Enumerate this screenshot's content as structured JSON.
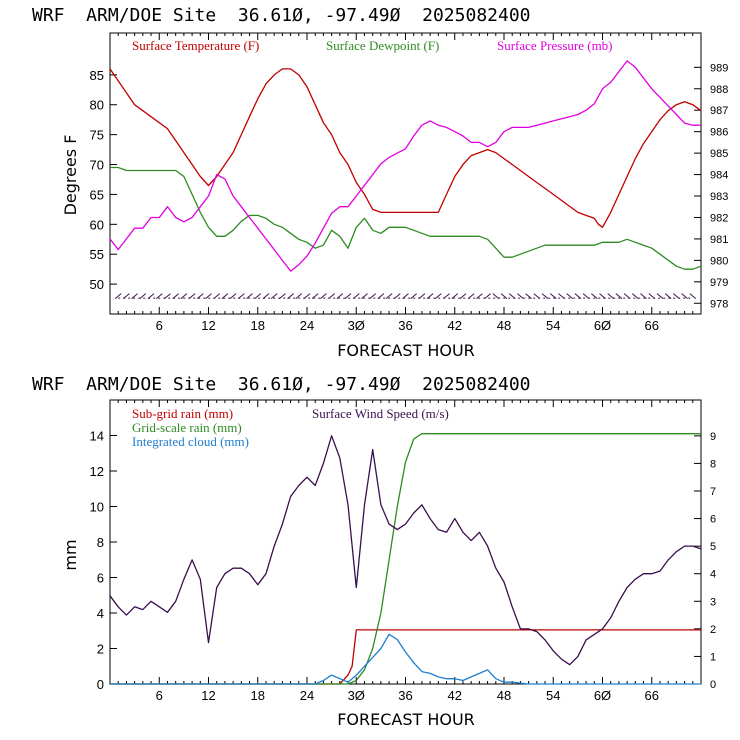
{
  "colors": {
    "temperature": "#c00000",
    "dewpoint": "#2e8b22",
    "pressure": "#e000e0",
    "subgrid_rain": "#c00000",
    "gridscale_rain": "#2e8b22",
    "cloud": "#1e7fd0",
    "wind": "#3a0f4f",
    "barbs": "#3a0f4f"
  },
  "chart_data": [
    {
      "type": "line",
      "title": "WRF  ARM/DOE Site  36.61Ø, -97.49Ø  2025082400",
      "xlabel": "FORECAST HOUR",
      "ylabel": "Degrees F",
      "xlim": [
        0,
        72
      ],
      "ylim": [
        45,
        92
      ],
      "xticks": [
        6,
        12,
        18,
        24,
        30,
        36,
        42,
        48,
        54,
        60,
        66
      ],
      "xtick_labels": [
        "6",
        "12",
        "18",
        "24",
        "3Ø",
        "36",
        "42",
        "48",
        "54",
        "6Ø",
        "66"
      ],
      "yticks": [
        50,
        55,
        60,
        65,
        70,
        75,
        80,
        85
      ],
      "right_axis": {
        "ylim": [
          977.5,
          990.6
        ],
        "ticks": [
          978,
          979,
          980,
          981,
          982,
          983,
          984,
          985,
          986,
          987,
          988,
          989
        ]
      },
      "legend": [
        "Surface Temperature (F)",
        "Surface Dewpoint (F)",
        "Surface Pressure (mb)"
      ],
      "legend_position": "top",
      "series": [
        {
          "name": "Surface Temperature (F)",
          "x": [
            0,
            1,
            2,
            3,
            4,
            5,
            6,
            7,
            8,
            9,
            10,
            11,
            12,
            13,
            14,
            15,
            16,
            17,
            18,
            19,
            20,
            21,
            22,
            23,
            24,
            25,
            26,
            27,
            28,
            29,
            30,
            31,
            32,
            33,
            34,
            35,
            36,
            37,
            38,
            39,
            40,
            41,
            42,
            43,
            44,
            45,
            46,
            47,
            48,
            49,
            50,
            51,
            52,
            53,
            54,
            55,
            56,
            57,
            58,
            59,
            59.5,
            60,
            61,
            62,
            63,
            64,
            65,
            66,
            67,
            68,
            69,
            70,
            71,
            72
          ],
          "y": [
            86,
            84,
            82,
            80,
            79,
            78,
            77,
            76,
            74,
            72,
            70,
            68,
            66.5,
            68,
            70,
            72,
            75,
            78,
            81,
            83.5,
            85,
            86,
            86,
            85,
            83,
            80,
            77,
            75,
            72,
            70,
            67,
            65,
            62.5,
            62,
            62,
            62,
            62,
            62,
            62,
            62,
            62,
            65,
            68,
            70,
            71.5,
            72,
            72.5,
            72,
            71,
            70,
            69,
            68,
            67,
            66,
            65,
            64,
            63,
            62,
            61.5,
            61,
            60,
            59.5,
            62,
            65,
            68,
            71,
            73.5,
            75.5,
            77.5,
            79,
            80,
            80.5,
            80,
            79
          ]
        },
        {
          "name": "Surface Dewpoint (F)",
          "x": [
            0,
            1,
            2,
            3,
            4,
            5,
            6,
            7,
            8,
            9,
            10,
            11,
            12,
            13,
            14,
            15,
            16,
            17,
            18,
            19,
            20,
            21,
            22,
            23,
            24,
            25,
            26,
            27,
            28,
            29,
            30,
            31,
            32,
            33,
            34,
            35,
            36,
            37,
            38,
            39,
            40,
            41,
            42,
            43,
            44,
            45,
            46,
            47,
            48,
            49,
            50,
            51,
            52,
            53,
            54,
            55,
            56,
            57,
            58,
            59,
            60,
            61,
            62,
            63,
            64,
            65,
            66,
            67,
            68,
            69,
            70,
            71,
            72
          ],
          "y": [
            69.5,
            69.5,
            69,
            69,
            69,
            69,
            69,
            69,
            69,
            68,
            65,
            62,
            59.5,
            58,
            58,
            59,
            60.5,
            61.5,
            61.5,
            61,
            60,
            59.5,
            58.5,
            57.5,
            57,
            56,
            56.5,
            59,
            58,
            56,
            59.5,
            61,
            59,
            58.5,
            59.5,
            59.5,
            59.5,
            59,
            58.5,
            58,
            58,
            58,
            58,
            58,
            58,
            58,
            57.5,
            56,
            54.5,
            54.5,
            55,
            55.5,
            56,
            56.5,
            56.5,
            56.5,
            56.5,
            56.5,
            56.5,
            56.5,
            57,
            57,
            57,
            57.5,
            57,
            56.5,
            56,
            55,
            54,
            53,
            52.5,
            52.5,
            53
          ]
        },
        {
          "name": "Surface Pressure (mb)",
          "axis": "right",
          "x": [
            0,
            1,
            2,
            3,
            4,
            5,
            6,
            7,
            8,
            9,
            10,
            11,
            12,
            13,
            14,
            15,
            16,
            17,
            18,
            19,
            20,
            21,
            22,
            23,
            24,
            25,
            26,
            27,
            28,
            29,
            30,
            31,
            32,
            33,
            34,
            35,
            36,
            37,
            38,
            39,
            40,
            41,
            42,
            43,
            44,
            45,
            46,
            47,
            48,
            49,
            50,
            51,
            52,
            53,
            54,
            55,
            56,
            57,
            58,
            59,
            60,
            61,
            62,
            63,
            64,
            65,
            66,
            67,
            68,
            69,
            70,
            71,
            72
          ],
          "y": [
            981,
            980.5,
            981,
            981.5,
            981.5,
            982,
            982,
            982.5,
            982,
            981.8,
            982,
            982.5,
            983,
            984,
            983.8,
            983,
            982.5,
            982,
            981.5,
            981,
            980.5,
            980,
            979.5,
            979.8,
            980.2,
            980.8,
            981.5,
            982.2,
            982.5,
            982.5,
            983,
            983.5,
            984,
            984.5,
            984.8,
            985,
            985.2,
            985.8,
            986.3,
            986.5,
            986.3,
            986.2,
            986,
            985.8,
            985.5,
            985.5,
            985.3,
            985.5,
            986,
            986.2,
            986.2,
            986.2,
            986.3,
            986.4,
            986.5,
            986.6,
            986.7,
            986.8,
            987,
            987.3,
            988,
            988.3,
            988.8,
            989.3,
            989,
            988.5,
            988,
            987.6,
            987.2,
            986.8,
            986.4,
            986.3,
            986.3
          ]
        }
      ],
      "wind_barbs": {
        "value_level": 48,
        "x": [
          1,
          2,
          3,
          4,
          5,
          6,
          7,
          8,
          9,
          10,
          11,
          12,
          13,
          14,
          15,
          16,
          17,
          18,
          19,
          20,
          21,
          22,
          23,
          24,
          25,
          26,
          27,
          28,
          29,
          30,
          31,
          32,
          33,
          34,
          35,
          36,
          37,
          38,
          39,
          40,
          41,
          42,
          43,
          44,
          45,
          46,
          47,
          48,
          49,
          50,
          51,
          52,
          53,
          54,
          55,
          56,
          57,
          58,
          59,
          60,
          61,
          62,
          63,
          64,
          65,
          66,
          67,
          68,
          69,
          70,
          71
        ]
      }
    },
    {
      "type": "line",
      "title": "WRF  ARM/DOE Site  36.61Ø, -97.49Ø  2025082400",
      "xlabel": "FORECAST HOUR",
      "ylabel": "mm",
      "xlim": [
        0,
        72
      ],
      "ylim": [
        0,
        16
      ],
      "xticks": [
        6,
        12,
        18,
        24,
        30,
        36,
        42,
        48,
        54,
        60,
        66
      ],
      "xtick_labels": [
        "6",
        "12",
        "18",
        "24",
        "3Ø",
        "36",
        "42",
        "48",
        "54",
        "6Ø",
        "66"
      ],
      "yticks": [
        0,
        2,
        4,
        6,
        8,
        10,
        12,
        14
      ],
      "right_axis": {
        "ylim": [
          0,
          10.3
        ],
        "ticks": [
          0,
          1,
          2,
          3,
          4,
          5,
          6,
          7,
          8,
          9
        ]
      },
      "legend": [
        "Sub-grid rain (mm)",
        "Grid-scale rain (mm)",
        "Integrated cloud (mm)",
        "Surface Wind Speed (m/s)"
      ],
      "legend_position": "top-left",
      "series": [
        {
          "name": "Sub-grid rain (mm)",
          "x": [
            0,
            28,
            29,
            29.5,
            30,
            72
          ],
          "y": [
            0,
            0,
            0.5,
            1,
            3.05,
            3.05
          ]
        },
        {
          "name": "Grid-scale rain (mm)",
          "x": [
            0,
            29,
            30,
            31,
            32,
            33,
            34,
            35,
            36,
            37,
            38,
            72
          ],
          "y": [
            0,
            0,
            0.2,
            0.8,
            2,
            4,
            7,
            10,
            12.5,
            13.8,
            14.1,
            14.1
          ]
        },
        {
          "name": "Integrated cloud (mm)",
          "x": [
            0,
            25,
            26,
            27,
            28,
            29,
            30,
            31,
            32,
            33,
            34,
            35,
            36,
            37,
            38,
            39,
            40,
            41,
            42,
            43,
            44,
            45,
            46,
            47,
            48,
            49,
            50,
            51,
            72
          ],
          "y": [
            0,
            0,
            0.2,
            0.5,
            0.3,
            0.1,
            0.5,
            1,
            1.5,
            2,
            2.8,
            2.5,
            1.8,
            1.2,
            0.7,
            0.6,
            0.4,
            0.3,
            0.3,
            0.2,
            0.4,
            0.6,
            0.8,
            0.3,
            0.1,
            0.1,
            0.05,
            0,
            0
          ]
        },
        {
          "name": "Surface Wind Speed (m/s)",
          "axis": "right",
          "x": [
            0,
            1,
            2,
            3,
            4,
            5,
            6,
            7,
            8,
            9,
            10,
            11,
            12,
            13,
            14,
            15,
            16,
            17,
            18,
            19,
            20,
            21,
            22,
            23,
            24,
            25,
            26,
            27,
            28,
            29,
            30,
            31,
            32,
            33,
            34,
            35,
            36,
            37,
            38,
            39,
            40,
            41,
            42,
            43,
            44,
            45,
            46,
            47,
            48,
            49,
            50,
            51,
            52,
            53,
            54,
            55,
            56,
            57,
            58,
            59,
            60,
            61,
            62,
            63,
            64,
            65,
            66,
            67,
            68,
            69,
            70,
            71,
            72
          ],
          "y": [
            3.2,
            2.8,
            2.5,
            2.8,
            2.7,
            3,
            2.8,
            2.6,
            3,
            3.8,
            4.5,
            3.8,
            1.5,
            3.5,
            4,
            4.2,
            4.2,
            4,
            3.6,
            4,
            5,
            5.8,
            6.8,
            7.2,
            7.5,
            7.2,
            8,
            9,
            8.2,
            6.5,
            3.5,
            6.5,
            8.5,
            6.5,
            5.8,
            5.6,
            5.8,
            6.2,
            6.5,
            6,
            5.6,
            5.5,
            6,
            5.5,
            5.2,
            5.5,
            5,
            4.2,
            3.7,
            2.8,
            2,
            2,
            1.9,
            1.6,
            1.2,
            0.9,
            0.7,
            1,
            1.6,
            1.8,
            2,
            2.4,
            3,
            3.5,
            3.8,
            4,
            4,
            4.1,
            4.5,
            4.8,
            5,
            5,
            4.9
          ]
        }
      ]
    }
  ]
}
